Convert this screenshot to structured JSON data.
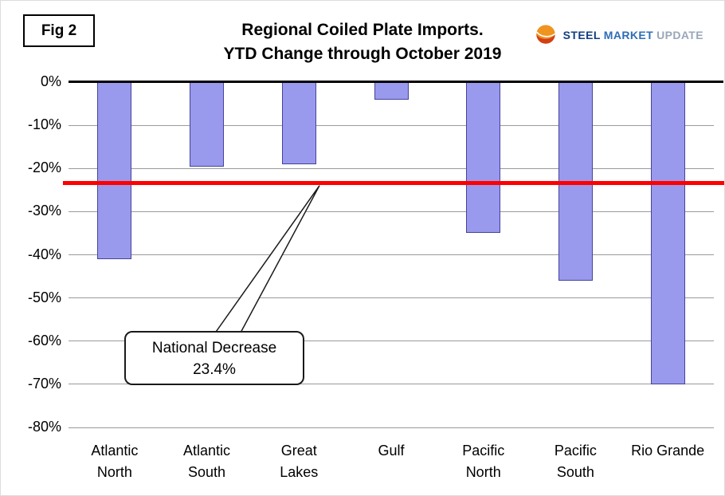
{
  "header": {
    "fig_label": "Fig 2",
    "title_line1": "Regional Coiled Plate Imports.",
    "title_line2": "YTD Change through October 2019",
    "logo": {
      "word1": "STEEL",
      "word2": "MARKET",
      "word3": "UPDATE"
    }
  },
  "chart_data": {
    "type": "bar",
    "title": "Regional Coiled Plate Imports.",
    "subtitle": "YTD Change through October 2019",
    "categories": [
      {
        "name": "Atlantic North",
        "lines": [
          "Atlantic",
          "North"
        ]
      },
      {
        "name": "Atlantic South",
        "lines": [
          "Atlantic",
          "South"
        ]
      },
      {
        "name": "Great Lakes",
        "lines": [
          "Great",
          "Lakes"
        ]
      },
      {
        "name": "Gulf",
        "lines": [
          "Gulf"
        ]
      },
      {
        "name": "Pacific North",
        "lines": [
          "Pacific",
          "North"
        ]
      },
      {
        "name": "Pacific South",
        "lines": [
          "Pacific",
          "South"
        ]
      },
      {
        "name": "Rio Grande",
        "lines": [
          "Rio Grande"
        ]
      }
    ],
    "values": [
      -41,
      -19.5,
      -19,
      -4,
      -35,
      -46,
      -70
    ],
    "unit": "%",
    "ylim": [
      -80,
      0
    ],
    "yticks": [
      0,
      -10,
      -20,
      -30,
      -40,
      -50,
      -60,
      -70,
      -80
    ],
    "grid": true,
    "legend": "none",
    "bar_color": "#9999EE",
    "bar_border_color": "#44449a",
    "gridline_color": "#9a9a9a",
    "reference_line": {
      "value": -23.4,
      "color": "#FF0000",
      "label": "National Decrease 23.4%"
    },
    "annotation": {
      "line1": "National Decrease",
      "line2": "23.4%"
    }
  }
}
